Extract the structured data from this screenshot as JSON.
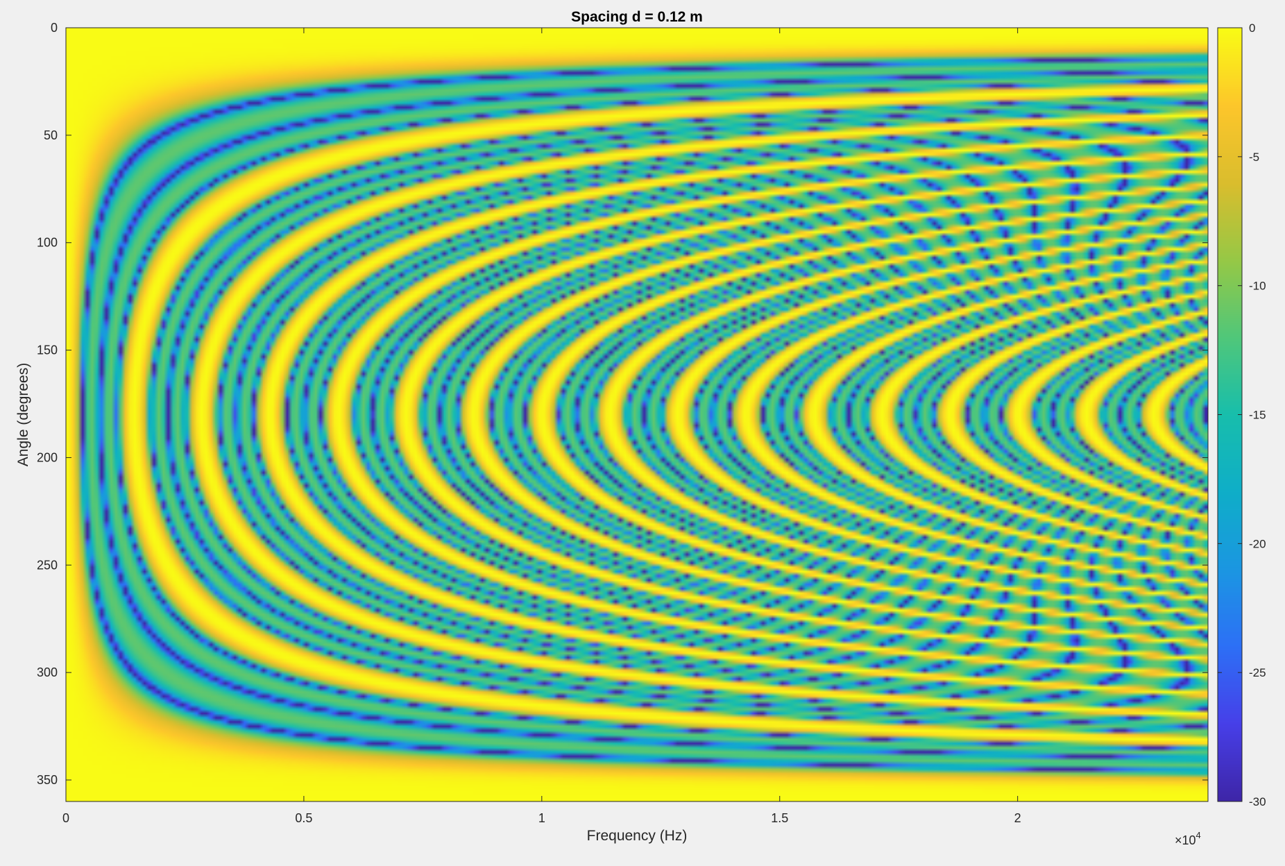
{
  "chart_data": {
    "type": "heatmap",
    "title": "Spacing d = 0.12 m",
    "xlabel": "Frequency (Hz)",
    "ylabel": "Angle (degrees)",
    "xlim": [
      0,
      24000
    ],
    "ylim": [
      0,
      360
    ],
    "y_reversed": true,
    "x_ticks": [
      0,
      5000,
      10000,
      15000,
      20000
    ],
    "x_tick_labels": [
      "0",
      "0.5",
      "1",
      "1.5",
      "2"
    ],
    "x_exponent_base": "×10",
    "x_exponent_power": "4",
    "y_ticks": [
      0,
      50,
      100,
      150,
      200,
      250,
      300,
      350
    ],
    "y_tick_labels": [
      "0",
      "50",
      "100",
      "150",
      "200",
      "250",
      "300",
      "350"
    ],
    "spacing_m": 0.12,
    "colormap": "parula",
    "colorbar": {
      "range": [
        -30,
        0
      ],
      "ticks": [
        0,
        -5,
        -10,
        -15,
        -20,
        -25,
        -30
      ],
      "tick_labels": [
        "0",
        "-5",
        "-10",
        "-15",
        "-20",
        "-25",
        "-30"
      ]
    },
    "grid": false
  },
  "colors": {
    "background": "#f0f0f0",
    "axes": "#262626"
  }
}
